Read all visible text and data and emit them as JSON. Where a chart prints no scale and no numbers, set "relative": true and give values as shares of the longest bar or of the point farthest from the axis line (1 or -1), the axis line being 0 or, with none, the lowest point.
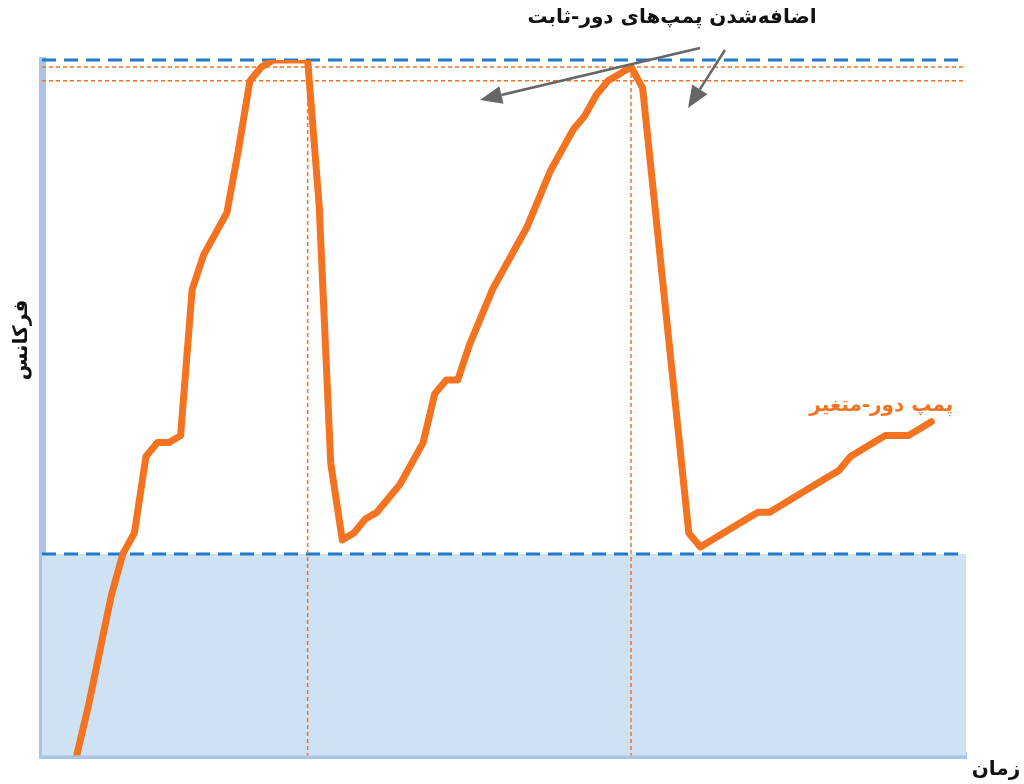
{
  "chart_data": {
    "type": "line",
    "relative": true,
    "xlabel": "زمان",
    "ylabel": "فرکانس",
    "annotations": [
      "اضافه‌شدن پمپ‌های دور-ثابت"
    ],
    "marker": "none",
    "line_style": "solid",
    "categories": [
      null,
      null,
      null,
      null,
      null,
      null,
      null,
      null,
      null,
      null,
      null,
      null,
      null,
      null,
      null,
      null,
      null,
      null,
      null,
      null,
      null,
      null,
      null,
      null,
      null,
      null,
      null,
      null,
      null,
      null,
      null,
      null,
      null,
      null,
      null,
      null,
      null,
      null,
      null,
      null,
      null,
      null,
      null,
      null,
      null,
      null,
      null,
      null,
      null,
      null,
      null,
      null,
      null,
      null,
      null,
      null,
      null,
      null,
      null,
      null,
      null,
      null,
      null,
      null,
      null,
      null,
      null,
      null,
      null,
      null,
      null,
      null,
      null,
      null,
      null,
      null,
      null,
      null,
      null,
      null,
      null
    ],
    "series": [
      {
        "name": "پمپ دور-متغیر",
        "color": "#f47321",
        "values": [
          null,
          null,
          null,
          0,
          0.07,
          0.15,
          0.23,
          0.29,
          0.32,
          0.43,
          0.45,
          0.45,
          0.46,
          0.67,
          0.72,
          0.75,
          0.78,
          0.87,
          0.97,
          0.99,
          1,
          1,
          1,
          1,
          0.79,
          0.42,
          0.31,
          0.32,
          0.34,
          0.35,
          0.37,
          0.39,
          0.42,
          0.45,
          0.52,
          0.54,
          0.54,
          0.59,
          0.63,
          0.67,
          0.7,
          0.73,
          0.76,
          0.8,
          0.84,
          0.87,
          0.9,
          0.92,
          0.95,
          0.97,
          0.98,
          0.99,
          0.96,
          0.8,
          0.64,
          0.48,
          0.32,
          0.3,
          0.31,
          0.32,
          0.33,
          0.34,
          0.35,
          0.35,
          0.36,
          0.37,
          0.38,
          0.39,
          0.4,
          0.41,
          0.43,
          0.44,
          0.45,
          0.46,
          0.46,
          0.46,
          0.47,
          0.48,
          null,
          null,
          null
        ]
      }
    ],
    "ref_lines": [
      {
        "axis": "y",
        "value": 0.29,
        "color": "#1f78c8",
        "line_style": "dashed"
      },
      {
        "axis": "y",
        "value": 1,
        "color": "#1f78c8",
        "line_style": "dashed"
      },
      {
        "axis": "y",
        "value": 0.99,
        "color": "#f47321",
        "line_style": "dotted"
      },
      {
        "axis": "y",
        "value": 0.97,
        "color": "#f47321",
        "line_style": "dotted"
      }
    ],
    "bands": [
      {
        "axis": "y",
        "from": 0,
        "to": 0.29,
        "color": "#cfe2f3"
      }
    ]
  }
}
